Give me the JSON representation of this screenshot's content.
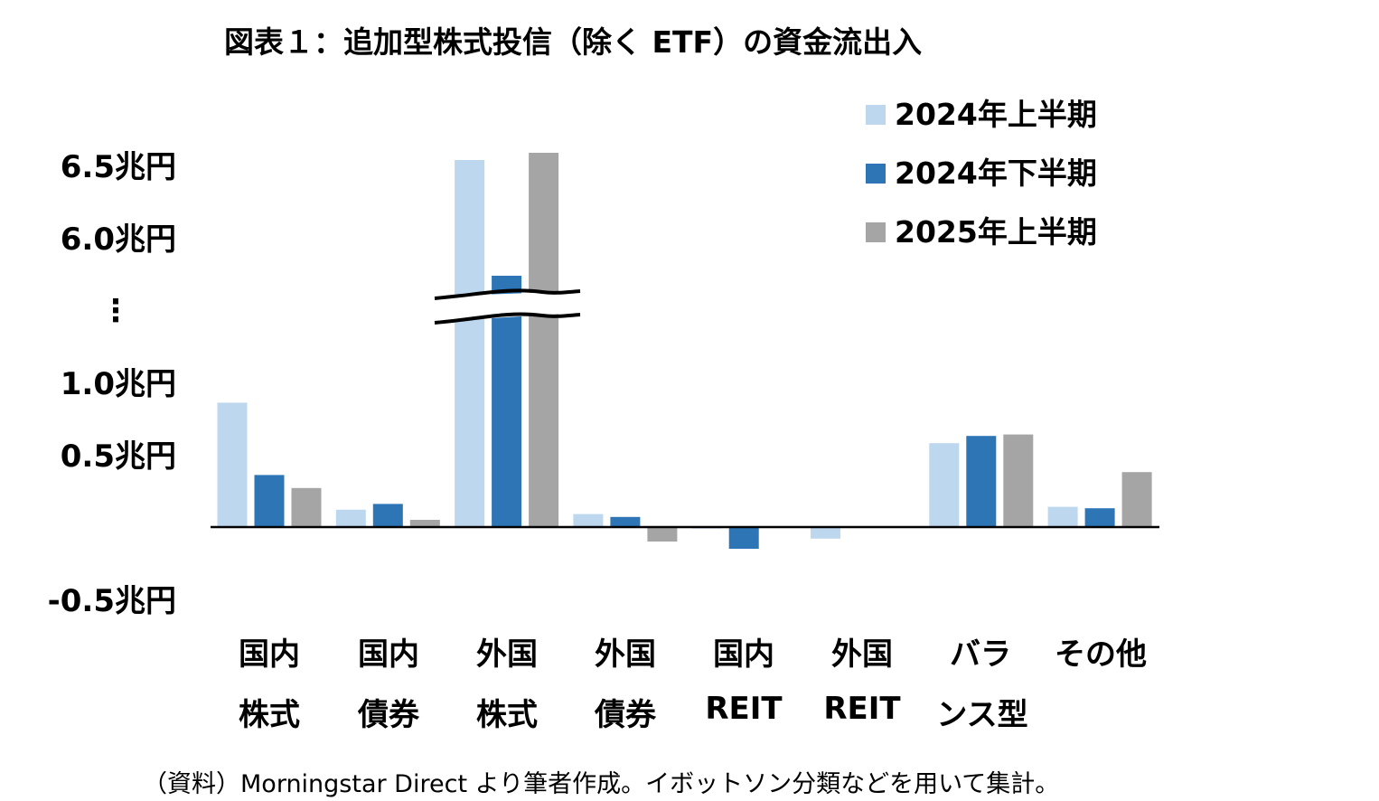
{
  "chart_data": {
    "type": "bar",
    "title": "図表１：追加型株式投信（除く ETF）の資金流出入",
    "source_note": "（資料）Morningstar Direct より筆者作成。イボットソン分類などを用いて集計。",
    "unit": "兆円",
    "y_ticks": [
      "6.5兆円",
      "6.0兆円",
      "1.0兆円",
      "0.5兆円",
      "-0.5兆円"
    ],
    "y_break_marker": "⋮",
    "axis_break": {
      "lower_max": 1.5,
      "upper_min": 5.65
    },
    "ylim": [
      -0.5,
      6.8
    ],
    "categories": [
      {
        "line1": "国内",
        "line2": "株式"
      },
      {
        "line1": "国内",
        "line2": "債券"
      },
      {
        "line1": "外国",
        "line2": "株式"
      },
      {
        "line1": "外国",
        "line2": "債券"
      },
      {
        "line1": "国内",
        "line2": "REIT"
      },
      {
        "line1": "外国",
        "line2": "REIT"
      },
      {
        "line1": "バラ",
        "line2": "ンス型"
      },
      {
        "line1": "その他",
        "line2": ""
      }
    ],
    "series": [
      {
        "name": "2024年上半期",
        "color": "#bdd7ee",
        "values": [
          0.86,
          0.12,
          6.7,
          0.09,
          -0.01,
          -0.08,
          0.58,
          0.14
        ]
      },
      {
        "name": "2024年下半期",
        "color": "#2e75b6",
        "values": [
          0.36,
          0.16,
          5.9,
          0.07,
          -0.15,
          0.0,
          0.63,
          0.13
        ]
      },
      {
        "name": "2025年上半期",
        "color": "#a5a5a5",
        "values": [
          0.27,
          0.05,
          6.75,
          -0.1,
          0.0,
          0.0,
          0.64,
          0.38
        ]
      }
    ],
    "legend_position": "top-right",
    "grid": false
  }
}
